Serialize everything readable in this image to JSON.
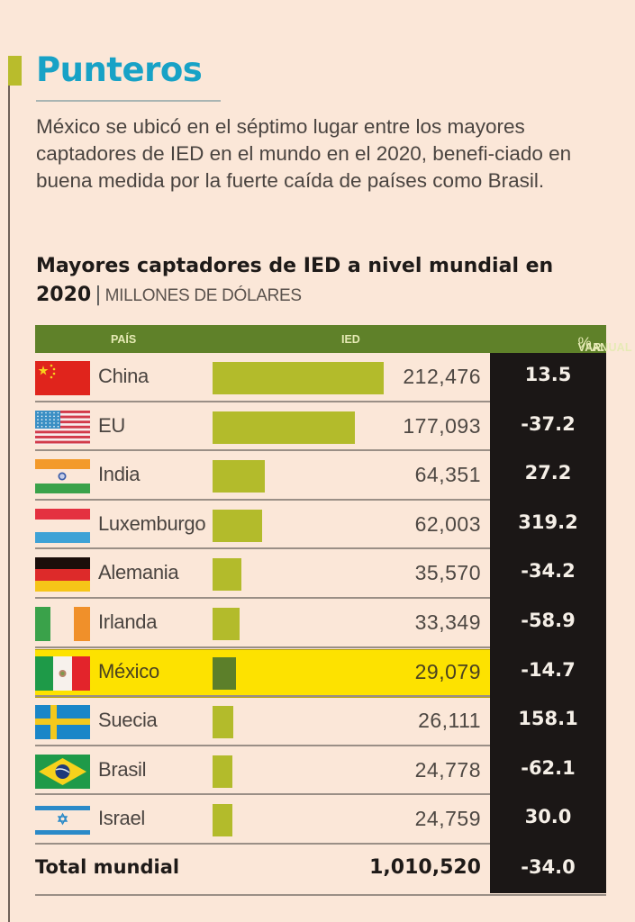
{
  "header": {
    "title": "Punteros",
    "intro": "México se ubicó en el séptimo lugar entre los mayores captadores de IED en el mundo en el 2020, benefi-ciado en buena medida por la fuerte caída de países como Brasil."
  },
  "chart_data": {
    "type": "table",
    "title": "Mayores captadores de IED a nivel mundial en 2020",
    "subtitle": "MILLONES DE DÓLARES",
    "columns": {
      "country": "PAÍS",
      "ied": "IED",
      "var_prefix": "VAR.",
      "var_pct": "%",
      "var_suffix": "ANUAL"
    },
    "bar_max": 212476,
    "highlight_color": "#fde200",
    "bar_color": "#b3bb2b",
    "highlight_bar_color": "#5c7f2a",
    "header_color": "#5f8129",
    "rows": [
      {
        "country": "China",
        "flag": "china-flag",
        "ied": 212476,
        "ied_label": "212,476",
        "var": "13.5",
        "highlight": false
      },
      {
        "country": "EU",
        "flag": "usa-flag",
        "ied": 177093,
        "ied_label": "177,093",
        "var": "-37.2",
        "highlight": false
      },
      {
        "country": "India",
        "flag": "india-flag",
        "ied": 64351,
        "ied_label": "64,351",
        "var": "27.2",
        "highlight": false
      },
      {
        "country": "Luxemburgo",
        "flag": "luxembourg-flag",
        "ied": 62003,
        "ied_label": "62,003",
        "var": "319.2",
        "highlight": false
      },
      {
        "country": "Alemania",
        "flag": "germany-flag",
        "ied": 35570,
        "ied_label": "35,570",
        "var": "-34.2",
        "highlight": false
      },
      {
        "country": "Irlanda",
        "flag": "ireland-flag",
        "ied": 33349,
        "ied_label": "33,349",
        "var": "-58.9",
        "highlight": false
      },
      {
        "country": "México",
        "flag": "mexico-flag",
        "ied": 29079,
        "ied_label": "29,079",
        "var": "-14.7",
        "highlight": true
      },
      {
        "country": "Suecia",
        "flag": "sweden-flag",
        "ied": 26111,
        "ied_label": "26,111",
        "var": "158.1",
        "highlight": false
      },
      {
        "country": "Brasil",
        "flag": "brazil-flag",
        "ied": 24778,
        "ied_label": "24,778",
        "var": "-62.1",
        "highlight": false
      },
      {
        "country": "Israel",
        "flag": "israel-flag",
        "ied": 24759,
        "ied_label": "24,759",
        "var": "30.0",
        "highlight": false
      }
    ],
    "total": {
      "label": "Total mundial",
      "ied": 1010520,
      "ied_label": "1,010,520",
      "var": "-34.0"
    }
  }
}
